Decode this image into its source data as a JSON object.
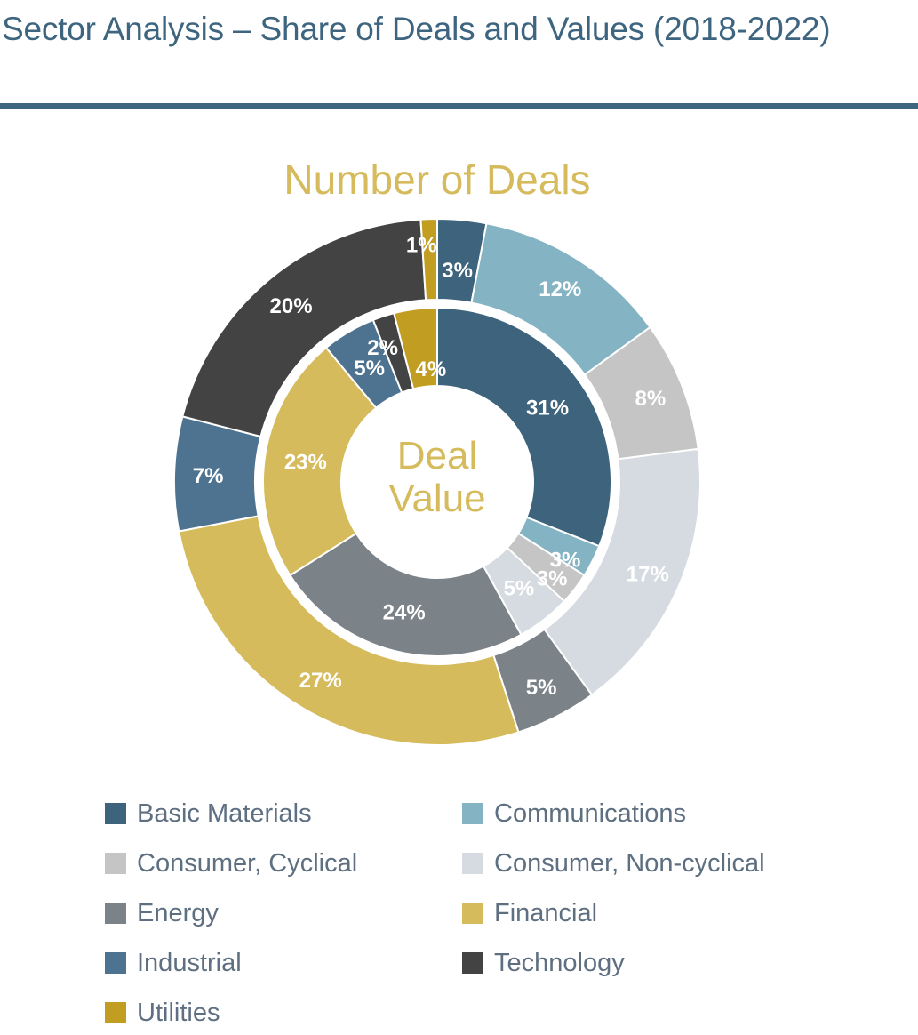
{
  "page": {
    "title": "Sector Analysis – Share of Deals and Values (2018-2022)"
  },
  "chart_data": {
    "type": "pie",
    "variant": "nested-donut",
    "outer_ring_title": "Number of Deals",
    "inner_ring_title_lines": [
      "Deal",
      "Value"
    ],
    "categories": [
      "Basic Materials",
      "Communications",
      "Consumer, Cyclical",
      "Consumer, Non-cyclical",
      "Energy",
      "Financial",
      "Industrial",
      "Technology",
      "Utilities"
    ],
    "colors": [
      "#3d647c",
      "#84b4c4",
      "#c5c5c5",
      "#d6dbe1",
      "#7b8288",
      "#d5bb5c",
      "#4e7390",
      "#434343",
      "#c19e22"
    ],
    "series": [
      {
        "name": "Number of Deals",
        "values": [
          3,
          12,
          8,
          17,
          5,
          27,
          7,
          20,
          1
        ],
        "labels": [
          "3%",
          "12%",
          "8%",
          "17%",
          "5%",
          "27%",
          "7%",
          "20%",
          "1%"
        ]
      },
      {
        "name": "Deal Value",
        "values": [
          31,
          3,
          3,
          5,
          24,
          23,
          5,
          2,
          4
        ],
        "labels": [
          "31%",
          "3%",
          "3%",
          "5%",
          "24%",
          "23%",
          "5%",
          "2%",
          "4%"
        ]
      }
    ],
    "legend_position": "bottom",
    "legend_columns": 2
  }
}
